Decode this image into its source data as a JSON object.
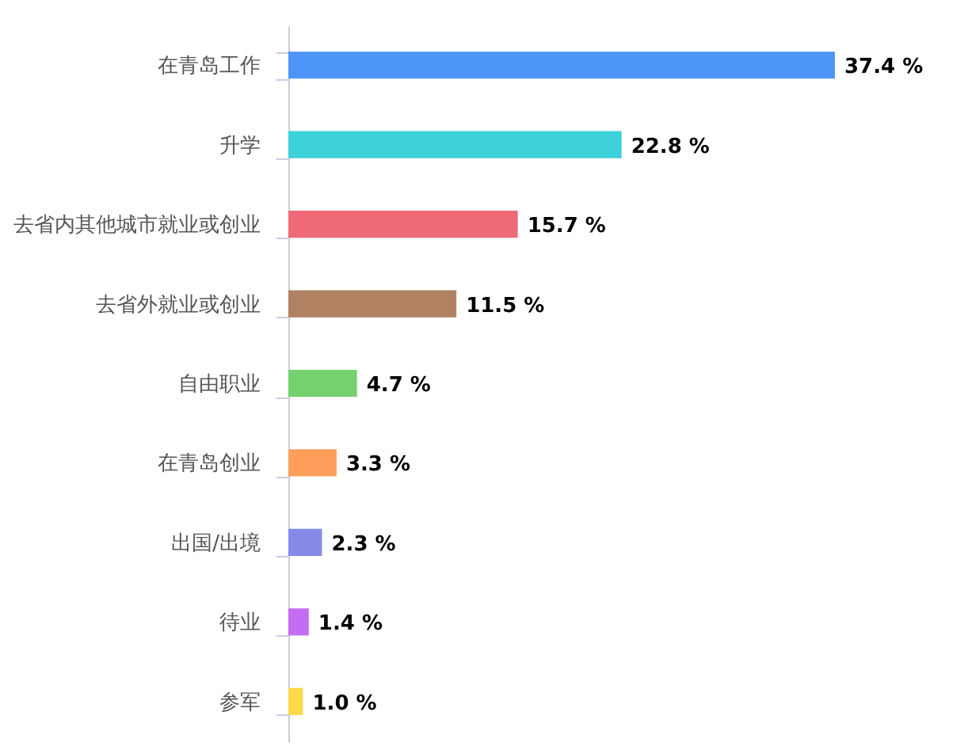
{
  "chart_data": {
    "type": "bar",
    "orientation": "horizontal",
    "categories": [
      "在青岛工作",
      "升学",
      "去省内其他城市就业或创业",
      "去省外就业或创业",
      "自由职业",
      "在青岛创业",
      "出国/出境",
      "待业",
      "参军"
    ],
    "values": [
      37.4,
      22.8,
      15.7,
      11.5,
      4.7,
      3.3,
      2.3,
      1.4,
      1.0
    ],
    "colors": [
      "#4e95f8",
      "#3dd1d9",
      "#ee6a78",
      "#b08262",
      "#75d06e",
      "#fe9f5c",
      "#8589e8",
      "#c46cf2",
      "#fdd84a"
    ],
    "value_labels": [
      "37.4 %",
      "22.8 %",
      "15.7 %",
      "11.5 %",
      "4.7 %",
      "3.3 %",
      "2.3 %",
      "1.4 %",
      "1.0 %"
    ],
    "legend": false
  }
}
